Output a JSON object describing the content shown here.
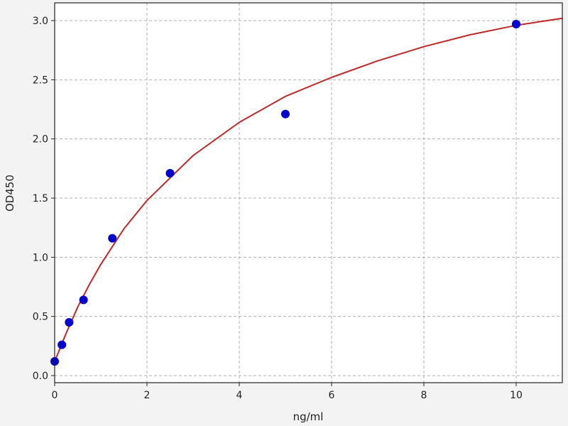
{
  "chart_data": {
    "type": "scatter",
    "title": "",
    "xlabel": "ng/ml",
    "ylabel": "OD450",
    "xlim": [
      0,
      11
    ],
    "ylim": [
      -0.06,
      3.15
    ],
    "xticks": [
      "0",
      "2",
      "4",
      "6",
      "8",
      "10"
    ],
    "yticks": [
      "0.0",
      "0.5",
      "1.0",
      "1.5",
      "2.0",
      "2.5",
      "3.0"
    ],
    "grid": true,
    "points": {
      "color": "#0000cc",
      "x": [
        0,
        0.156,
        0.3125,
        0.625,
        1.25,
        2.5,
        5,
        10
      ],
      "y": [
        0.12,
        0.26,
        0.45,
        0.64,
        1.16,
        1.71,
        2.21,
        2.97
      ]
    },
    "fit_curve": {
      "color": "#c0282a",
      "x": [
        0,
        0.25,
        0.5,
        0.75,
        1,
        1.5,
        2,
        3,
        4,
        5,
        6,
        7,
        8,
        9,
        10,
        11
      ],
      "y": [
        0.12,
        0.36,
        0.58,
        0.77,
        0.94,
        1.24,
        1.48,
        1.86,
        2.14,
        2.36,
        2.52,
        2.66,
        2.78,
        2.88,
        2.96,
        3.02
      ]
    }
  }
}
